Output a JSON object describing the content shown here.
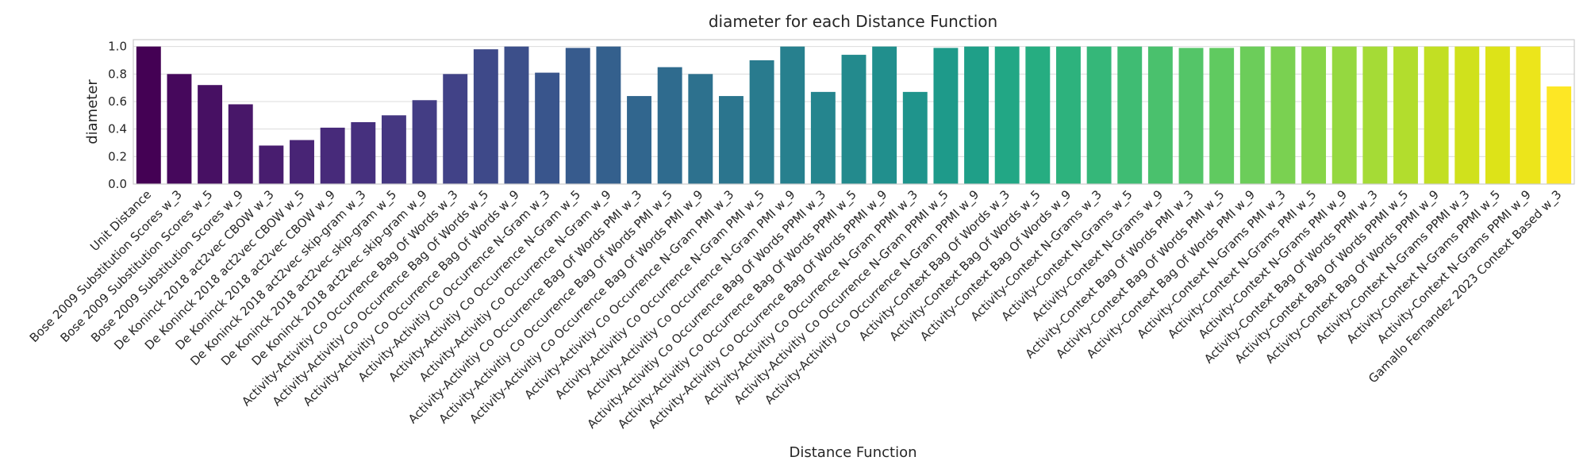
{
  "chart_data": {
    "type": "bar",
    "title": "diameter for each Distance Function",
    "xlabel": "Distance Function",
    "ylabel": "diameter",
    "ylim": [
      0,
      1.05
    ],
    "yticks": [
      "0.0",
      "0.2",
      "0.4",
      "0.6",
      "0.8",
      "1.0"
    ],
    "grid": true,
    "palette": "viridis",
    "categories": [
      "Unit Distance",
      "Bose 2009 Substitution Scores w_3",
      "Bose 2009 Substitution Scores w_5",
      "Bose 2009 Substitution Scores w_9",
      "De Koninck 2018 act2vec CBOW w_3",
      "De Koninck 2018 act2vec CBOW w_5",
      "De Koninck 2018 act2vec CBOW w_9",
      "De Koninck 2018 act2vec skip-gram w_3",
      "De Koninck 2018 act2vec skip-gram w_5",
      "De Koninck 2018 act2vec skip-gram w_9",
      "Activity-Activitiy Co Occurrence Bag Of Words w_3",
      "Activity-Activitiy Co Occurrence Bag Of Words w_5",
      "Activity-Activitiy Co Occurrence Bag Of Words w_9",
      "Activity-Activitiy Co Occurrence N-Gram w_3",
      "Activity-Activitiy Co Occurrence N-Gram w_5",
      "Activity-Activitiy Co Occurrence N-Gram w_9",
      "Activity-Activitiy Co Occurrence Bag Of Words PMI w_3",
      "Activity-Activitiy Co Occurrence Bag Of Words PMI w_5",
      "Activity-Activitiy Co Occurrence Bag Of Words PMI w_9",
      "Activity-Activitiy Co Occurrence N-Gram PMI w_3",
      "Activity-Activitiy Co Occurrence N-Gram PMI w_5",
      "Activity-Activitiy Co Occurrence N-Gram PMI w_9",
      "Activity-Activitiy Co Occurrence Bag Of Words PPMI w_3",
      "Activity-Activitiy Co Occurrence Bag Of Words PPMI w_5",
      "Activity-Activitiy Co Occurrence Bag Of Words PPMI w_9",
      "Activity-Activitiy Co Occurrence N-Gram PPMI w_3",
      "Activity-Activitiy Co Occurrence N-Gram PPMI w_5",
      "Activity-Activitiy Co Occurrence N-Gram PPMI w_9",
      "Activity-Context Bag Of Words w_3",
      "Activity-Context Bag Of Words w_5",
      "Activity-Context Bag Of Words w_9",
      "Activity-Context N-Grams w_3",
      "Activity-Context N-Grams w_5",
      "Activity-Context N-Grams w_9",
      "Activity-Context Bag Of Words PMI w_3",
      "Activity-Context Bag Of Words PMI w_5",
      "Activity-Context Bag Of Words PMI w_9",
      "Activity-Context N-Grams PMI w_3",
      "Activity-Context N-Grams PMI w_5",
      "Activity-Context N-Grams PMI w_9",
      "Activity-Context Bag Of Words PPMI w_3",
      "Activity-Context Bag Of Words PPMI w_5",
      "Activity-Context Bag Of Words PPMI w_9",
      "Activity-Context N-Grams PPMI w_3",
      "Activity-Context N-Grams PPMI w_5",
      "Activity-Context N-Grams PPMI w_9",
      "Gamallo Fernandez 2023 Context Based w_3"
    ],
    "values": [
      1.0,
      0.8,
      0.72,
      0.58,
      0.28,
      0.32,
      0.41,
      0.45,
      0.5,
      0.61,
      0.8,
      0.98,
      1.0,
      0.81,
      0.99,
      1.0,
      0.64,
      0.85,
      0.8,
      0.64,
      0.9,
      1.0,
      0.67,
      0.94,
      1.0,
      0.67,
      0.99,
      1.0,
      1.0,
      1.0,
      1.0,
      1.0,
      1.0,
      1.0,
      0.99,
      0.99,
      1.0,
      1.0,
      1.0,
      1.0,
      1.0,
      1.0,
      1.0,
      1.0,
      1.0,
      1.0,
      0.71
    ],
    "colors": [
      "#440154",
      "#46085c",
      "#471063",
      "#481769",
      "#481d6f",
      "#482475",
      "#472a7a",
      "#46307e",
      "#453781",
      "#433d84",
      "#414287",
      "#3e4989",
      "#3c4f8a",
      "#39558c",
      "#375b8d",
      "#34608d",
      "#31668e",
      "#2f6b8e",
      "#2d718e",
      "#2b758e",
      "#297b8e",
      "#27808e",
      "#25858e",
      "#238a8d",
      "#218f8d",
      "#1f948c",
      "#1e9a8a",
      "#1f9f88",
      "#22a785",
      "#26ad81",
      "#2db27d",
      "#35b779",
      "#3fbc73",
      "#4ac16d",
      "#54c568",
      "#60ca60",
      "#6ccd5a",
      "#7ad151",
      "#88d548",
      "#95d840",
      "#a5db36",
      "#b2dd2d",
      "#c2df23",
      "#d0e11c",
      "#dde318",
      "#ece51b",
      "#fde725"
    ]
  }
}
